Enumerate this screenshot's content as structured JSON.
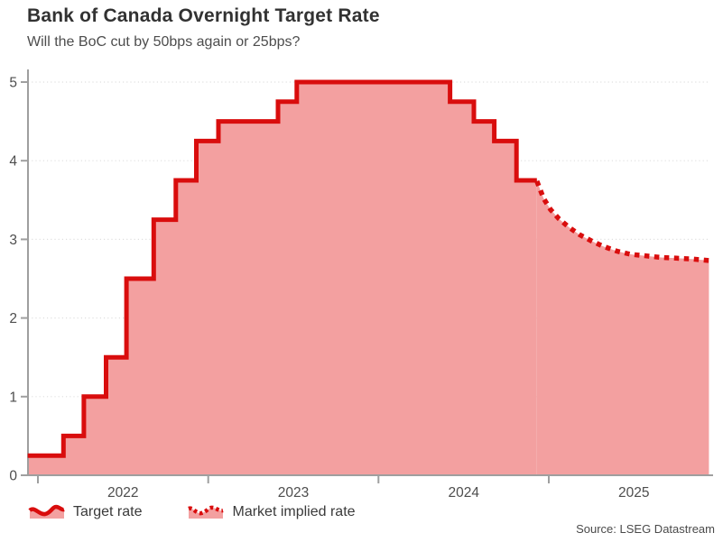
{
  "colors": {
    "line": "#d90d0d",
    "fill": "#f3a0a0",
    "axis": "#9f9f9f",
    "grid": "#dfdfdf",
    "tick_text": "#4d4d4d",
    "title_text": "#323232"
  },
  "chart_data": {
    "type": "area",
    "title": "Bank of Canada Overnight Target Rate",
    "subtitle": "Will the BoC cut by 50bps again or 25bps?",
    "source": "Source: LSEG Datastream",
    "xlabel": "",
    "ylabel": "",
    "xlim": [
      2021.94,
      2025.99
    ],
    "ylim": [
      0,
      5.16
    ],
    "y_ticks": [
      0,
      1,
      2,
      3,
      4,
      5
    ],
    "x_year_ticks": [
      2022,
      2023,
      2024,
      2025
    ],
    "x_year_labels": [
      "2022",
      "2023",
      "2024",
      "2025"
    ],
    "grid": "dotted-horizontal",
    "legend_position": "bottom-left",
    "series": [
      {
        "name": "Target rate",
        "style": "solid-step",
        "end_t": 2024.93,
        "points": [
          [
            2021.94,
            0.25
          ],
          [
            2022.15,
            0.5
          ],
          [
            2022.27,
            1.0
          ],
          [
            2022.4,
            1.5
          ],
          [
            2022.52,
            2.5
          ],
          [
            2022.68,
            3.25
          ],
          [
            2022.81,
            3.75
          ],
          [
            2022.93,
            4.25
          ],
          [
            2023.06,
            4.5
          ],
          [
            2023.41,
            4.75
          ],
          [
            2023.52,
            5.0
          ],
          [
            2024.42,
            4.75
          ],
          [
            2024.56,
            4.5
          ],
          [
            2024.68,
            4.25
          ],
          [
            2024.81,
            3.75
          ]
        ]
      },
      {
        "name": "Market implied rate",
        "style": "dotted-line",
        "points": [
          [
            2024.93,
            3.74
          ],
          [
            2024.97,
            3.52
          ],
          [
            2025.01,
            3.38
          ],
          [
            2025.06,
            3.26
          ],
          [
            2025.12,
            3.15
          ],
          [
            2025.18,
            3.06
          ],
          [
            2025.25,
            2.98
          ],
          [
            2025.32,
            2.91
          ],
          [
            2025.4,
            2.85
          ],
          [
            2025.48,
            2.81
          ],
          [
            2025.57,
            2.79
          ],
          [
            2025.66,
            2.77
          ],
          [
            2025.75,
            2.76
          ],
          [
            2025.84,
            2.75
          ],
          [
            2025.94,
            2.73
          ]
        ]
      }
    ]
  }
}
